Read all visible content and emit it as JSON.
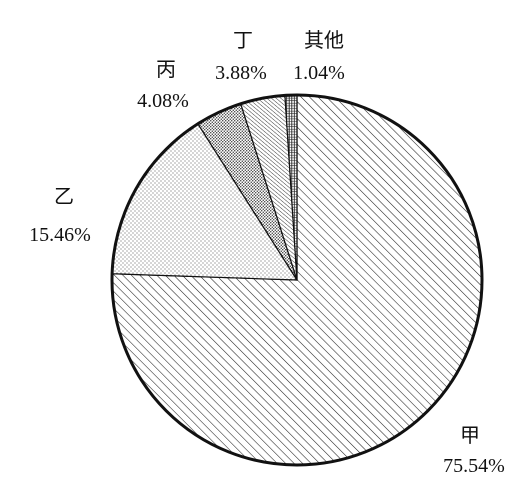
{
  "chart_data": {
    "type": "pie",
    "slices": [
      {
        "label": "甲",
        "value": 75.54,
        "value_label": "75.54%",
        "pattern": "diagonal-hatch"
      },
      {
        "label": "乙",
        "value": 15.46,
        "value_label": "15.46%",
        "pattern": "sparse-dots"
      },
      {
        "label": "丙",
        "value": 4.08,
        "value_label": "4.08%",
        "pattern": "dense-dots"
      },
      {
        "label": "丁",
        "value": 3.88,
        "value_label": "3.88%",
        "pattern": "fine-diagonal-hatch"
      },
      {
        "label": "其他",
        "value": 1.04,
        "value_label": "1.04%",
        "pattern": "vertical-lines"
      }
    ],
    "start_angle": "12 o'clock",
    "direction": "clockwise",
    "colors": {
      "outline": "#111111",
      "background": "#ffffff"
    }
  }
}
